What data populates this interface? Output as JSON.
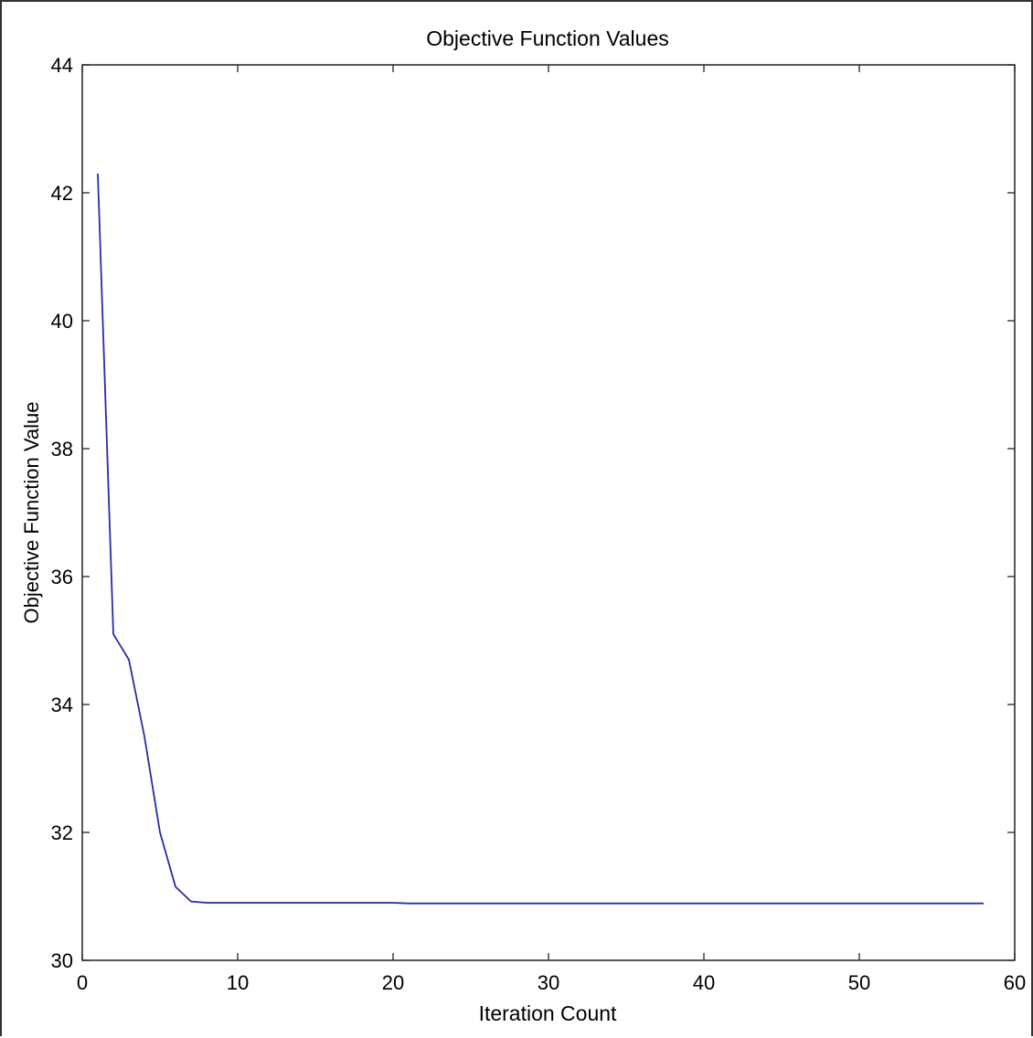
{
  "chart_data": {
    "type": "line",
    "title": "Objective Function Values",
    "xlabel": "Iteration Count",
    "ylabel": "Objective Function Value",
    "xlim": [
      0,
      60
    ],
    "ylim": [
      30,
      44
    ],
    "xticks": [
      0,
      10,
      20,
      30,
      40,
      50,
      60
    ],
    "yticks": [
      30,
      32,
      34,
      36,
      38,
      40,
      42,
      44
    ],
    "grid": false,
    "legend": "none",
    "series": [
      {
        "color": "#2a2aa8",
        "x": [
          1,
          2,
          3,
          4,
          5,
          6,
          7,
          8,
          9,
          10,
          11,
          12,
          13,
          14,
          15,
          16,
          17,
          18,
          19,
          20,
          21,
          22,
          23,
          24,
          25,
          26,
          27,
          28,
          29,
          30,
          31,
          32,
          33,
          34,
          35,
          36,
          37,
          38,
          39,
          40,
          41,
          42,
          43,
          44,
          45,
          46,
          47,
          48,
          49,
          50,
          51,
          52,
          53,
          54,
          55,
          56,
          57,
          58
        ],
        "y": [
          42.3,
          35.1,
          34.7,
          33.5,
          32.0,
          31.15,
          30.92,
          30.9,
          30.9,
          30.9,
          30.9,
          30.9,
          30.9,
          30.9,
          30.9,
          30.9,
          30.9,
          30.9,
          30.9,
          30.9,
          30.89,
          30.89,
          30.89,
          30.89,
          30.89,
          30.89,
          30.89,
          30.89,
          30.89,
          30.89,
          30.89,
          30.89,
          30.89,
          30.89,
          30.89,
          30.89,
          30.89,
          30.89,
          30.89,
          30.89,
          30.89,
          30.89,
          30.89,
          30.89,
          30.89,
          30.89,
          30.89,
          30.89,
          30.89,
          30.89,
          30.89,
          30.89,
          30.89,
          30.89,
          30.89,
          30.89,
          30.89,
          30.89
        ]
      }
    ]
  }
}
